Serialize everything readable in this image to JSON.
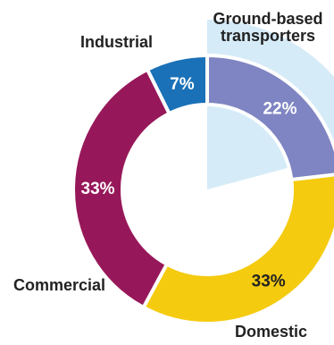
{
  "chart_data": {
    "type": "pie",
    "donut": true,
    "categories": [
      "Ground-based transporters",
      "Domestic",
      "Commercial",
      "Industrial"
    ],
    "label_lines": [
      [
        "Ground-based",
        "transporters"
      ],
      [
        "Domestic"
      ],
      [
        "Commercial"
      ],
      [
        "Industrial"
      ]
    ],
    "values": [
      22,
      33,
      33,
      7
    ],
    "value_labels": [
      "22%",
      "33%",
      "33%",
      "7%"
    ],
    "colors": [
      "#7f85c2",
      "#f5cb10",
      "#97185a",
      "#1a71b7"
    ],
    "highlight_color": "#d6ebf8",
    "value_label_color": "#ffffff",
    "domestic_label_color": "#222222"
  }
}
